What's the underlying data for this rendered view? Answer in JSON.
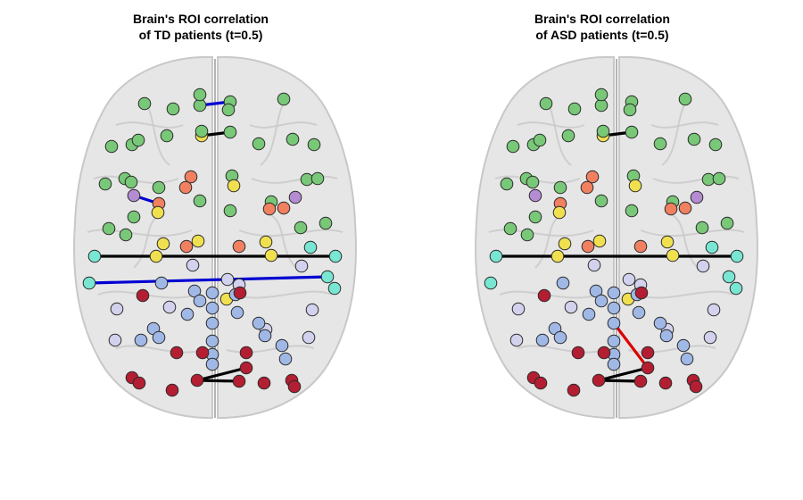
{
  "colors": {
    "green": "#78c878",
    "yellow": "#f0e050",
    "orange": "#f08060",
    "purple": "#b48cd2",
    "cyan": "#78e6d2",
    "blue": "#a0b8e6",
    "lavender": "#d2d2ee",
    "red": "#b41e32",
    "edge_black": "#000000",
    "edge_blue": "#0000d2",
    "edge_red": "#dc0000",
    "brain_fill": "#e6e6e6",
    "brain_fold": "#c8c8c8"
  },
  "panels": [
    {
      "title_line1": "Brain's ROI correlation",
      "title_line2": "of TD patients (t=0.5)",
      "edges": [
        {
          "from": 0,
          "to": 1,
          "color": "edge_blue"
        },
        {
          "from": 2,
          "to": 3,
          "color": "edge_black"
        },
        {
          "from": 4,
          "to": 5,
          "color": "edge_blue"
        },
        {
          "from": 6,
          "to": 7,
          "color": "edge_black"
        },
        {
          "from": 8,
          "to": 9,
          "color": "edge_blue"
        },
        {
          "from": 10,
          "to": 11,
          "color": "edge_black"
        },
        {
          "from": 10,
          "to": 12,
          "color": "edge_black"
        }
      ]
    },
    {
      "title_line1": "Brain's ROI correlation",
      "title_line2": "of ASD patients (t=0.5)",
      "edges": [
        {
          "from": 2,
          "to": 3,
          "color": "edge_black"
        },
        {
          "from": 6,
          "to": 7,
          "color": "edge_black"
        },
        {
          "from": 10,
          "to": 11,
          "color": "edge_black"
        },
        {
          "from": 10,
          "to": 12,
          "color": "edge_black"
        },
        {
          "from": 13,
          "to": 11,
          "color": "edge_red"
        }
      ]
    }
  ]
}
